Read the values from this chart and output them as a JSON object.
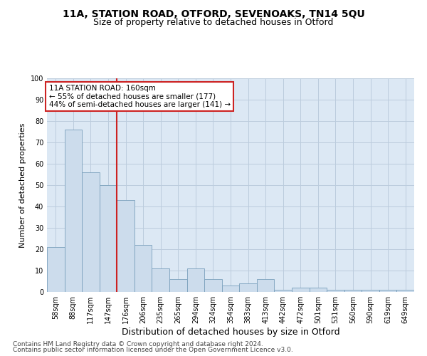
{
  "title_line1": "11A, STATION ROAD, OTFORD, SEVENOAKS, TN14 5QU",
  "title_line2": "Size of property relative to detached houses in Otford",
  "xlabel": "Distribution of detached houses by size in Otford",
  "ylabel": "Number of detached properties",
  "categories": [
    "58sqm",
    "88sqm",
    "117sqm",
    "147sqm",
    "176sqm",
    "206sqm",
    "235sqm",
    "265sqm",
    "294sqm",
    "324sqm",
    "354sqm",
    "383sqm",
    "413sqm",
    "442sqm",
    "472sqm",
    "501sqm",
    "531sqm",
    "560sqm",
    "590sqm",
    "619sqm",
    "649sqm"
  ],
  "values": [
    21,
    76,
    56,
    50,
    43,
    22,
    11,
    6,
    11,
    6,
    3,
    4,
    6,
    1,
    2,
    2,
    1,
    1,
    1,
    1,
    1
  ],
  "bar_color": "#ccdcec",
  "bar_edge_color": "#7aa0bc",
  "vline_color": "#cc2222",
  "annotation_line1": "11A STATION ROAD: 160sqm",
  "annotation_line2": "← 55% of detached houses are smaller (177)",
  "annotation_line3": "44% of semi-detached houses are larger (141) →",
  "annotation_box_color": "#cc2222",
  "annotation_box_bg": "#ffffff",
  "ylim": [
    0,
    100
  ],
  "yticks": [
    0,
    10,
    20,
    30,
    40,
    50,
    60,
    70,
    80,
    90,
    100
  ],
  "grid_color": "#bbccdd",
  "bg_color": "#dce8f4",
  "footer_line1": "Contains HM Land Registry data © Crown copyright and database right 2024.",
  "footer_line2": "Contains public sector information licensed under the Open Government Licence v3.0.",
  "title_fontsize": 10,
  "subtitle_fontsize": 9,
  "xlabel_fontsize": 9,
  "ylabel_fontsize": 8,
  "tick_fontsize": 7,
  "annotation_fontsize": 7.5,
  "footer_fontsize": 6.5
}
